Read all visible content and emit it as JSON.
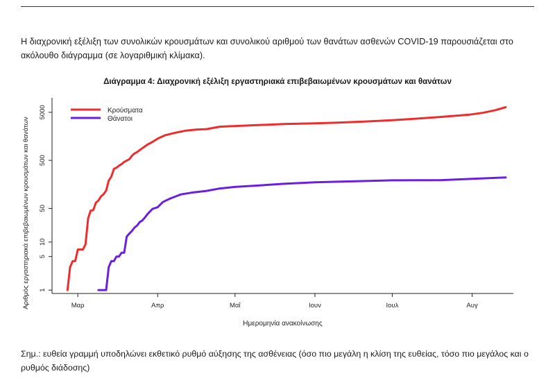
{
  "intro_text": "Η διαχρονική εξέλιξη των συνολικών κρουσμάτων και συνολικού αριθμού των θανάτων ασθενών COVID-19 παρουσιάζεται στο ακόλουθο διάγραμμα (σε λογαριθμική κλίμακα).",
  "note_text": "Σημ.: ευθεία γραμμή υποδηλώνει εκθετικό ρυθμό αύξησης της ασθένειας (όσο πιο μεγάλη η κλίση της ευθείας, τόσο πιο μεγάλος και ο ρυθμός διάδοσης)",
  "chart_data": {
    "type": "line",
    "title": "Διάγραμμα 4: Διαχρονική εξέλιξη εργαστηριακά επιβεβαιωμένων κρουσμάτων και θανάτων",
    "xlabel": "Ημερομηνία ανακοίνωσης",
    "ylabel": "Αριθμός εργαστηριακά επιβεβαιωμένων κρουσμάτων και θανάτων",
    "y_scale": "log",
    "ylim": [
      0.85,
      10000
    ],
    "xlim": [
      "2020-02-20",
      "2020-08-17"
    ],
    "y_ticks": [
      1,
      5,
      10,
      50,
      500,
      5000
    ],
    "x_ticks": [
      {
        "date": "2020-03-01",
        "label": "Μαρ"
      },
      {
        "date": "2020-04-01",
        "label": "Απρ"
      },
      {
        "date": "2020-05-01",
        "label": "Μαΐ"
      },
      {
        "date": "2020-06-01",
        "label": "Ιουν"
      },
      {
        "date": "2020-07-01",
        "label": "Ιουλ"
      },
      {
        "date": "2020-08-01",
        "label": "Αυγ"
      }
    ],
    "legend_position": "top-left",
    "grid": false,
    "series": [
      {
        "name": "Κρούσματα",
        "color": "#ee2c2c",
        "points": [
          [
            "2020-02-26",
            1
          ],
          [
            "2020-02-27",
            3
          ],
          [
            "2020-02-28",
            4
          ],
          [
            "2020-02-29",
            4
          ],
          [
            "2020-03-01",
            7
          ],
          [
            "2020-03-03",
            7
          ],
          [
            "2020-03-04",
            9
          ],
          [
            "2020-03-05",
            31
          ],
          [
            "2020-03-06",
            45
          ],
          [
            "2020-03-07",
            46
          ],
          [
            "2020-03-08",
            66
          ],
          [
            "2020-03-09",
            73
          ],
          [
            "2020-03-10",
            89
          ],
          [
            "2020-03-11",
            99
          ],
          [
            "2020-03-12",
            117
          ],
          [
            "2020-03-13",
            190
          ],
          [
            "2020-03-14",
            228
          ],
          [
            "2020-03-15",
            331
          ],
          [
            "2020-03-16",
            352
          ],
          [
            "2020-03-17",
            387
          ],
          [
            "2020-03-18",
            418
          ],
          [
            "2020-03-19",
            464
          ],
          [
            "2020-03-20",
            495
          ],
          [
            "2020-03-21",
            530
          ],
          [
            "2020-03-22",
            624
          ],
          [
            "2020-03-23",
            695
          ],
          [
            "2020-03-24",
            743
          ],
          [
            "2020-03-26",
            892
          ],
          [
            "2020-03-28",
            1061
          ],
          [
            "2020-03-30",
            1212
          ],
          [
            "2020-04-01",
            1415
          ],
          [
            "2020-04-04",
            1673
          ],
          [
            "2020-04-08",
            1884
          ],
          [
            "2020-04-12",
            2081
          ],
          [
            "2020-04-16",
            2192
          ],
          [
            "2020-04-20",
            2235
          ],
          [
            "2020-04-25",
            2506
          ],
          [
            "2020-05-01",
            2591
          ],
          [
            "2020-05-10",
            2710
          ],
          [
            "2020-05-20",
            2850
          ],
          [
            "2020-06-01",
            2952
          ],
          [
            "2020-06-10",
            3049
          ],
          [
            "2020-06-20",
            3203
          ],
          [
            "2020-07-01",
            3432
          ],
          [
            "2020-07-10",
            3672
          ],
          [
            "2020-07-20",
            4007
          ],
          [
            "2020-07-31",
            4477
          ],
          [
            "2020-08-05",
            4855
          ],
          [
            "2020-08-10",
            5535
          ],
          [
            "2020-08-14",
            6381
          ]
        ]
      },
      {
        "name": "Θάνατοι",
        "color": "#6a1fe0",
        "points": [
          [
            "2020-03-09",
            1
          ],
          [
            "2020-03-11",
            1
          ],
          [
            "2020-03-12",
            1
          ],
          [
            "2020-03-13",
            3
          ],
          [
            "2020-03-14",
            4
          ],
          [
            "2020-03-15",
            4
          ],
          [
            "2020-03-16",
            5
          ],
          [
            "2020-03-17",
            5
          ],
          [
            "2020-03-18",
            6
          ],
          [
            "2020-03-19",
            6
          ],
          [
            "2020-03-20",
            13
          ],
          [
            "2020-03-21",
            15
          ],
          [
            "2020-03-22",
            17
          ],
          [
            "2020-03-23",
            20
          ],
          [
            "2020-03-24",
            22
          ],
          [
            "2020-03-25",
            26
          ],
          [
            "2020-03-26",
            28
          ],
          [
            "2020-03-27",
            32
          ],
          [
            "2020-03-28",
            38
          ],
          [
            "2020-03-30",
            49
          ],
          [
            "2020-04-01",
            53
          ],
          [
            "2020-04-03",
            68
          ],
          [
            "2020-04-06",
            81
          ],
          [
            "2020-04-10",
            98
          ],
          [
            "2020-04-15",
            108
          ],
          [
            "2020-04-20",
            116
          ],
          [
            "2020-04-25",
            130
          ],
          [
            "2020-05-01",
            140
          ],
          [
            "2020-05-10",
            150
          ],
          [
            "2020-05-20",
            163
          ],
          [
            "2020-06-01",
            175
          ],
          [
            "2020-06-15",
            183
          ],
          [
            "2020-07-01",
            192
          ],
          [
            "2020-07-20",
            194
          ],
          [
            "2020-08-01",
            206
          ],
          [
            "2020-08-14",
            220
          ]
        ]
      }
    ]
  }
}
